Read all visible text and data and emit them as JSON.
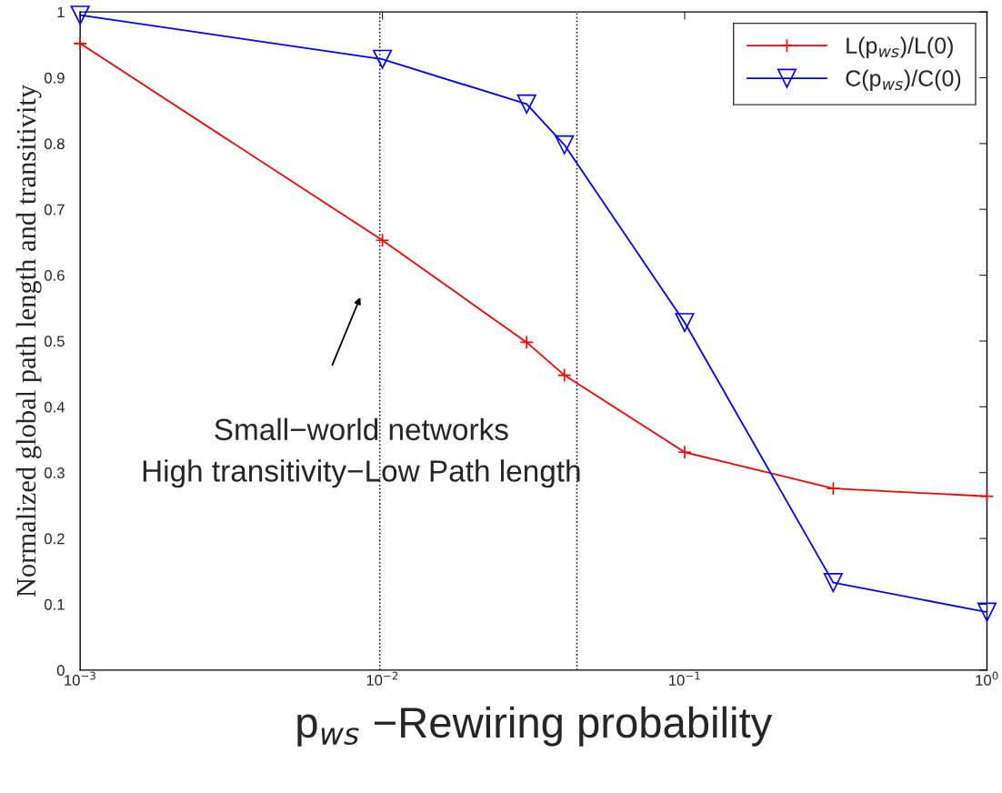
{
  "chart_data": {
    "type": "line",
    "xlabel": "p$_{ws}$ −Rewiring probability",
    "ylabel": "Normalized global path length and transitivity",
    "x": [
      0.001,
      0.01,
      0.03,
      0.04,
      0.1,
      0.31,
      1
    ],
    "series": [
      {
        "name": "L(p$_{ws}$)/L(0)",
        "color": "#ff0000",
        "marker": "cross",
        "values": [
          0.952,
          0.653,
          0.498,
          0.448,
          0.331,
          0.276,
          0.264
        ]
      },
      {
        "name": "C(p$_{ws}$)/C(0)",
        "color": "#0000ff",
        "marker": "triangle",
        "values": [
          0.995,
          0.928,
          0.86,
          0.798,
          0.528,
          0.133,
          0.088
        ]
      }
    ],
    "log": "x",
    "xlim": [
      0.001,
      1
    ],
    "ylim": [
      0,
      1
    ],
    "xticks": [
      {
        "value": 0.001,
        "label": "10$^{−3}$"
      },
      {
        "value": 0.01,
        "label": "10$^{−2}$"
      },
      {
        "value": 0.1,
        "label": "10$^{−1}$"
      },
      {
        "value": 1,
        "label": "10$^{0}$"
      }
    ],
    "yticks": [
      0,
      0.1,
      0.2,
      0.3,
      0.4,
      0.5,
      0.6,
      0.7,
      0.8,
      0.9,
      1
    ],
    "ref_lines": [
      {
        "axis": "x",
        "value": 0.0098,
        "line_style": "dotted",
        "color": "#000000"
      },
      {
        "axis": "x",
        "value": 0.044,
        "line_style": "dotted",
        "color": "#000000"
      }
    ],
    "annotations": [
      "Small−world networks\nHigh transitivity−Low Path length"
    ],
    "grid": false,
    "legend": "top right",
    "line_style": "solid"
  }
}
